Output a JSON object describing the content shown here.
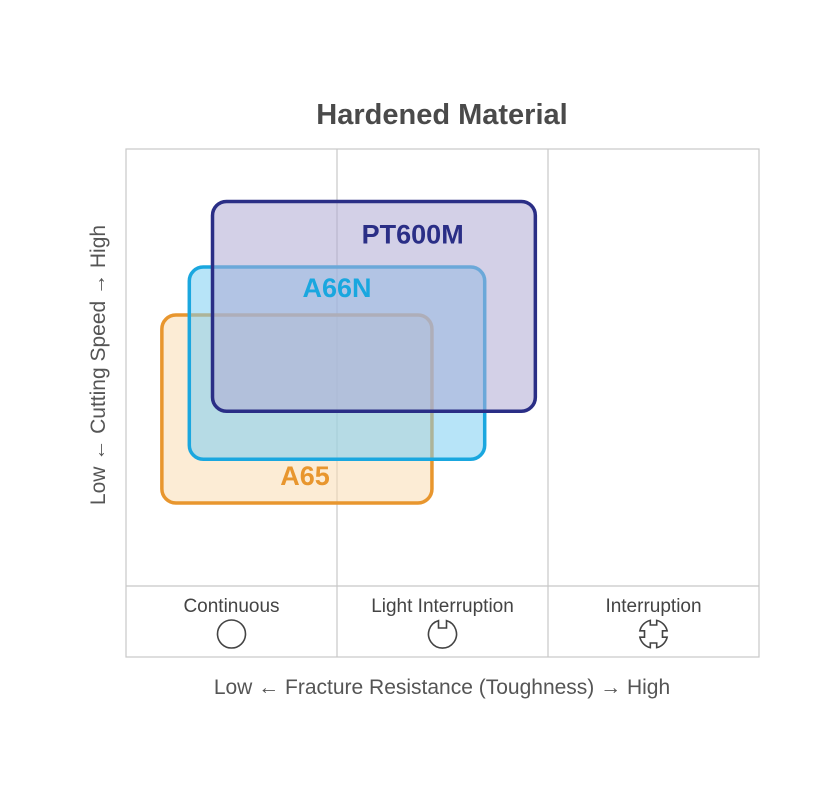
{
  "chart_data": {
    "type": "region",
    "title": "Hardened Material",
    "xlabel": "Low ← Fracture Resistance (Toughness) → High",
    "ylabel": "Low ← Cutting Speed → High",
    "categories": [
      "Continuous",
      "Light Interruption",
      "Interruption"
    ],
    "category_icons": [
      "circle-icon",
      "notched-circle-icon",
      "cross-notched-circle-icon"
    ],
    "xlim": [
      0,
      3
    ],
    "ylim": [
      0,
      1
    ],
    "series": [
      {
        "name": "A65",
        "color": "#E8962E",
        "fill": "#F9DDB3",
        "x": [
          0.17,
          1.45
        ],
        "y": [
          0.19,
          0.62
        ]
      },
      {
        "name": "A66N",
        "color": "#1AA7DF",
        "fill": "#7CCDF2",
        "x": [
          0.3,
          1.7
        ],
        "y": [
          0.29,
          0.73
        ]
      },
      {
        "name": "PT600M",
        "color": "#2A2E86",
        "fill": "#AFA9D4",
        "x": [
          0.41,
          1.94
        ],
        "y": [
          0.4,
          0.88
        ]
      }
    ]
  }
}
